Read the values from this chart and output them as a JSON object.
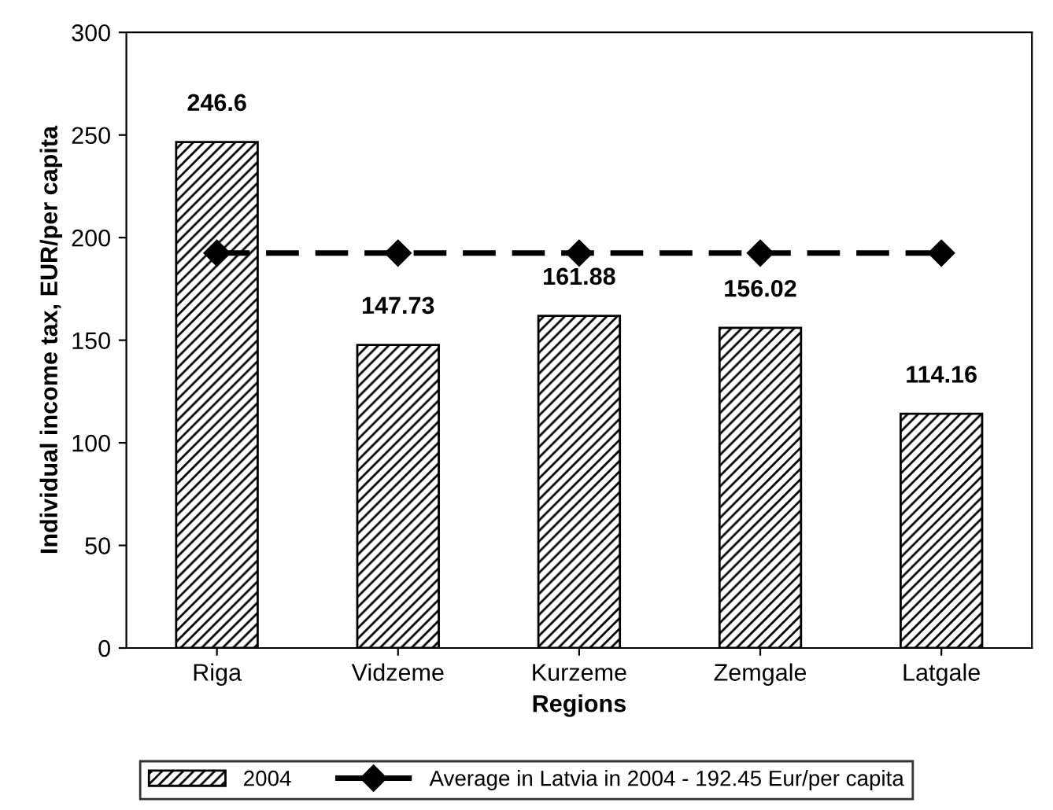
{
  "chart_data": {
    "type": "bar",
    "xlabel": "Regions",
    "ylabel": "Individual income tax, EUR/per capita",
    "categories": [
      "Riga",
      "Vidzeme",
      "Kurzeme",
      "Zemgale",
      "Latgale"
    ],
    "series": [
      {
        "name": "2004",
        "color": "#000000",
        "values": [
          246.6,
          147.73,
          161.88,
          156.02,
          114.16
        ],
        "value_labels": [
          "246.6",
          "147.73",
          "161.88",
          "156.02",
          "114.16"
        ]
      },
      {
        "name": "Average in Latvia in 2004 - 192.45 Eur/per capita",
        "type": "line",
        "color": "#000000",
        "values": [
          192.45,
          192.45,
          192.45,
          192.45,
          192.45
        ],
        "marker": "diamond",
        "line_style": "dashed"
      }
    ],
    "ylim": [
      0,
      300
    ],
    "yticks": [
      0,
      50,
      100,
      150,
      200,
      250,
      300
    ],
    "grid": false,
    "legend": "bottom"
  }
}
